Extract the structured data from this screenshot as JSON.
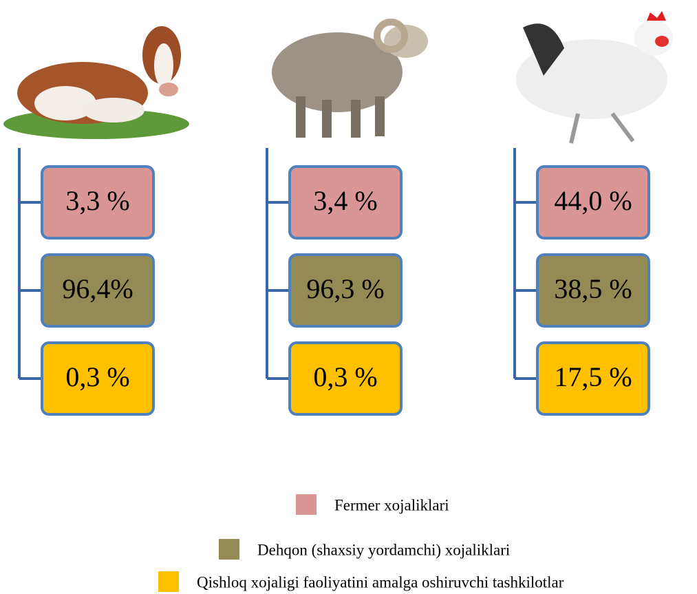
{
  "columns": [
    [
      "3,3 %",
      "96,4%",
      "0,3 %"
    ],
    [
      "3,4 %",
      "96,3 %",
      "0,3 %"
    ],
    [
      "44,0 %",
      "38,5 %",
      "17,5 %"
    ]
  ],
  "legend": [
    {
      "label": "Fermer xojaliklari",
      "color": "#d99694"
    },
    {
      "label": "Dehqon (shaxsiy yordamchi) xojaliklari",
      "color": "#948a54"
    },
    {
      "label": "Qishloq xojaligi faoliyatini amalga oshiruvchi tashkilotlar",
      "color": "#ffc000"
    }
  ]
}
